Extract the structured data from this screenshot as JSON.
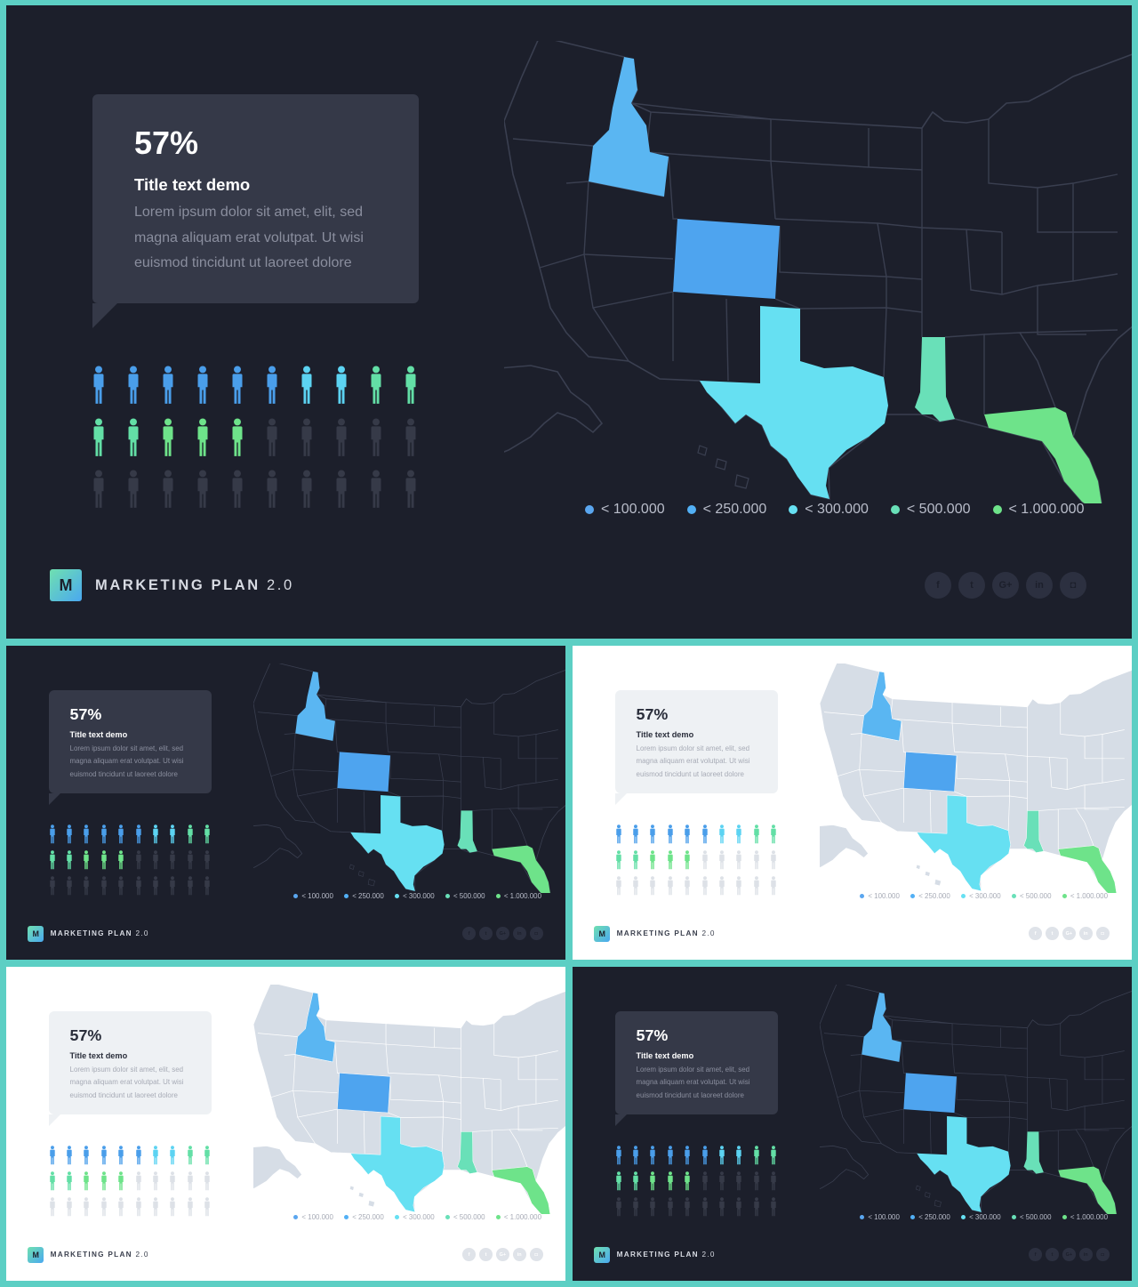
{
  "card": {
    "percent": "57%",
    "title": "Title text demo",
    "body_lines": [
      "Lorem ipsum dolor sit amet, elit, sed",
      "magna aliquam erat volutpat. Ut wisi",
      "euismod tincidunt ut laoreet dolore"
    ]
  },
  "legend": [
    {
      "label": "< 100.000",
      "color": "#5aa6ef"
    },
    {
      "label": "< 250.000",
      "color": "#52b0f5"
    },
    {
      "label": "< 300.000",
      "color": "#66e0f2"
    },
    {
      "label": "< 500.000",
      "color": "#69e0b8"
    },
    {
      "label": "< 1.000.000",
      "color": "#6ee38a"
    }
  ],
  "people_grid": {
    "rows": [
      [
        "#4a9eea",
        "#4a9eea",
        "#4a9eea",
        "#4a9eea",
        "#4a9eea",
        "#4a9eea",
        "#5cd3f2",
        "#5cd3f2",
        "#63dfa6",
        "#63dfa6"
      ],
      [
        "#63dfa6",
        "#63dfa6",
        "#6ee38a",
        "#6ee38a",
        "#6ee38a",
        "off",
        "off",
        "off",
        "off",
        "off"
      ],
      [
        "off",
        "off",
        "off",
        "off",
        "off",
        "off",
        "off",
        "off",
        "off",
        "off"
      ]
    ],
    "off_dark": "#363a48",
    "off_light": "#dde1e7"
  },
  "brand": {
    "letter": "M",
    "name": "MARKETING PLAN",
    "version": "2.0"
  },
  "social": [
    {
      "name": "facebook-icon",
      "glyph": "f"
    },
    {
      "name": "twitter-icon",
      "glyph": "t"
    },
    {
      "name": "google-plus-icon",
      "glyph": "G+"
    },
    {
      "name": "linkedin-icon",
      "glyph": "in"
    },
    {
      "name": "instagram-icon",
      "glyph": "◘"
    }
  ],
  "map_colors": {
    "idaho": "#5ab6f2",
    "colorado": "#4ea4ef",
    "texas": "#66e0f2",
    "mississippi": "#69e0b8",
    "florida": "#6ee38a",
    "land_dark": "#1c1f2b",
    "land_light": "#d6dde6",
    "border_dark": "#3a3f50",
    "border_light": "#ffffff"
  },
  "slides": [
    {
      "id": "main",
      "theme": "dark"
    },
    {
      "id": "thumb-1",
      "theme": "dark"
    },
    {
      "id": "thumb-2",
      "theme": "light"
    },
    {
      "id": "thumb-3",
      "theme": "light"
    },
    {
      "id": "thumb-4",
      "theme": "dark"
    }
  ]
}
